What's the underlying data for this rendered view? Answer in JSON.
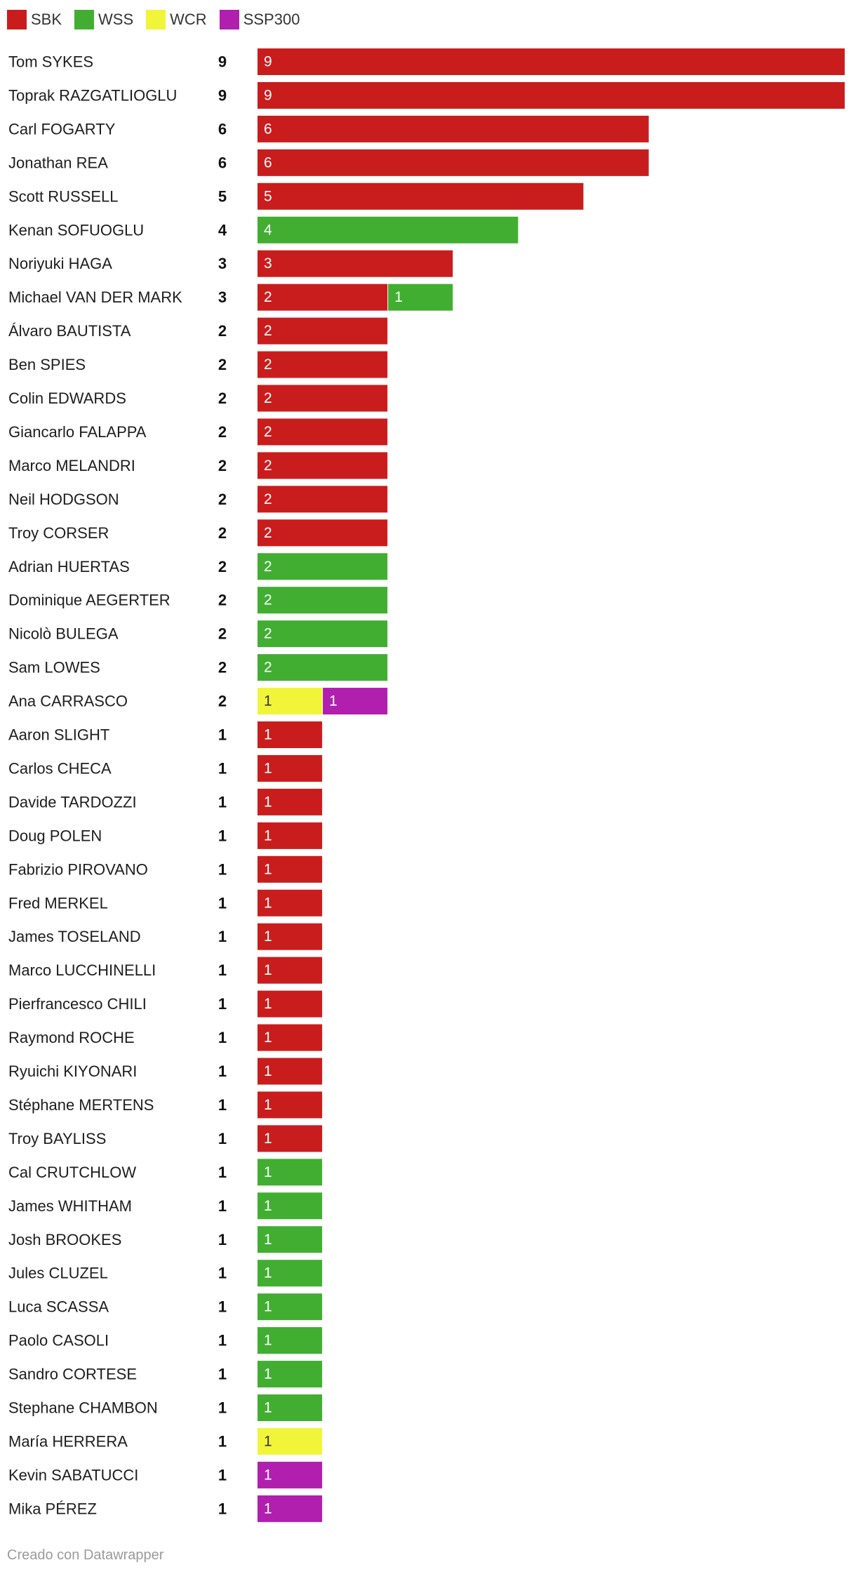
{
  "legend": [
    {
      "key": "SBK",
      "label": "SBK",
      "color": "#c91d1d"
    },
    {
      "key": "WSS",
      "label": "WSS",
      "color": "#41ae32"
    },
    {
      "key": "WCR",
      "label": "WCR",
      "color": "#f1f53a"
    },
    {
      "key": "SSP300",
      "label": "SSP300",
      "color": "#b01fad"
    }
  ],
  "chart_data": {
    "type": "bar",
    "orientation": "horizontal",
    "stacked": true,
    "xlim": [
      0,
      9
    ],
    "legend_position": "top-left",
    "series": [
      {
        "name": "SBK",
        "color": "#c91d1d",
        "label_color": "#ffffff"
      },
      {
        "name": "WSS",
        "color": "#41ae32",
        "label_color": "#ffffff"
      },
      {
        "name": "WCR",
        "color": "#f1f53a",
        "label_color": "#333333"
      },
      {
        "name": "SSP300",
        "color": "#b01fad",
        "label_color": "#ffffff"
      }
    ],
    "rows": [
      {
        "name": "Tom SYKES",
        "total": 9,
        "values": {
          "SBK": 9
        }
      },
      {
        "name": "Toprak RAZGATLIOGLU",
        "total": 9,
        "values": {
          "SBK": 9
        }
      },
      {
        "name": "Carl FOGARTY",
        "total": 6,
        "values": {
          "SBK": 6
        }
      },
      {
        "name": "Jonathan REA",
        "total": 6,
        "values": {
          "SBK": 6
        }
      },
      {
        "name": "Scott RUSSELL",
        "total": 5,
        "values": {
          "SBK": 5
        }
      },
      {
        "name": "Kenan SOFUOGLU",
        "total": 4,
        "values": {
          "WSS": 4
        }
      },
      {
        "name": "Noriyuki HAGA",
        "total": 3,
        "values": {
          "SBK": 3
        }
      },
      {
        "name": "Michael VAN DER MARK",
        "total": 3,
        "values": {
          "SBK": 2,
          "WSS": 1
        }
      },
      {
        "name": "Álvaro BAUTISTA",
        "total": 2,
        "values": {
          "SBK": 2
        }
      },
      {
        "name": "Ben SPIES",
        "total": 2,
        "values": {
          "SBK": 2
        }
      },
      {
        "name": "Colin EDWARDS",
        "total": 2,
        "values": {
          "SBK": 2
        }
      },
      {
        "name": "Giancarlo FALAPPA",
        "total": 2,
        "values": {
          "SBK": 2
        }
      },
      {
        "name": "Marco MELANDRI",
        "total": 2,
        "values": {
          "SBK": 2
        }
      },
      {
        "name": "Neil HODGSON",
        "total": 2,
        "values": {
          "SBK": 2
        }
      },
      {
        "name": "Troy CORSER",
        "total": 2,
        "values": {
          "SBK": 2
        }
      },
      {
        "name": "Adrian HUERTAS",
        "total": 2,
        "values": {
          "WSS": 2
        }
      },
      {
        "name": "Dominique AEGERTER",
        "total": 2,
        "values": {
          "WSS": 2
        }
      },
      {
        "name": "Nicolò BULEGA",
        "total": 2,
        "values": {
          "WSS": 2
        }
      },
      {
        "name": "Sam LOWES",
        "total": 2,
        "values": {
          "WSS": 2
        }
      },
      {
        "name": "Ana CARRASCO",
        "total": 2,
        "values": {
          "WCR": 1,
          "SSP300": 1
        }
      },
      {
        "name": "Aaron SLIGHT",
        "total": 1,
        "values": {
          "SBK": 1
        }
      },
      {
        "name": "Carlos CHECA",
        "total": 1,
        "values": {
          "SBK": 1
        }
      },
      {
        "name": "Davide TARDOZZI",
        "total": 1,
        "values": {
          "SBK": 1
        }
      },
      {
        "name": "Doug POLEN",
        "total": 1,
        "values": {
          "SBK": 1
        }
      },
      {
        "name": "Fabrizio PIROVANO",
        "total": 1,
        "values": {
          "SBK": 1
        }
      },
      {
        "name": "Fred MERKEL",
        "total": 1,
        "values": {
          "SBK": 1
        }
      },
      {
        "name": "James TOSELAND",
        "total": 1,
        "values": {
          "SBK": 1
        }
      },
      {
        "name": "Marco LUCCHINELLI",
        "total": 1,
        "values": {
          "SBK": 1
        }
      },
      {
        "name": "Pierfrancesco CHILI",
        "total": 1,
        "values": {
          "SBK": 1
        }
      },
      {
        "name": "Raymond ROCHE",
        "total": 1,
        "values": {
          "SBK": 1
        }
      },
      {
        "name": "Ryuichi KIYONARI",
        "total": 1,
        "values": {
          "SBK": 1
        }
      },
      {
        "name": "Stéphane MERTENS",
        "total": 1,
        "values": {
          "SBK": 1
        }
      },
      {
        "name": "Troy BAYLISS",
        "total": 1,
        "values": {
          "SBK": 1
        }
      },
      {
        "name": "Cal CRUTCHLOW",
        "total": 1,
        "values": {
          "WSS": 1
        }
      },
      {
        "name": "James WHITHAM",
        "total": 1,
        "values": {
          "WSS": 1
        }
      },
      {
        "name": "Josh BROOKES",
        "total": 1,
        "values": {
          "WSS": 1
        }
      },
      {
        "name": "Jules CLUZEL",
        "total": 1,
        "values": {
          "WSS": 1
        }
      },
      {
        "name": "Luca SCASSA",
        "total": 1,
        "values": {
          "WSS": 1
        }
      },
      {
        "name": "Paolo CASOLI",
        "total": 1,
        "values": {
          "WSS": 1
        }
      },
      {
        "name": "Sandro CORTESE",
        "total": 1,
        "values": {
          "WSS": 1
        }
      },
      {
        "name": "Stephane CHAMBON",
        "total": 1,
        "values": {
          "WSS": 1
        }
      },
      {
        "name": "María HERRERA",
        "total": 1,
        "values": {
          "WCR": 1
        }
      },
      {
        "name": "Kevin SABATUCCI",
        "total": 1,
        "values": {
          "SSP300": 1
        }
      },
      {
        "name": "Mika PÉREZ",
        "total": 1,
        "values": {
          "SSP300": 1
        }
      }
    ]
  },
  "footer": {
    "text": "Creado con Datawrapper"
  }
}
